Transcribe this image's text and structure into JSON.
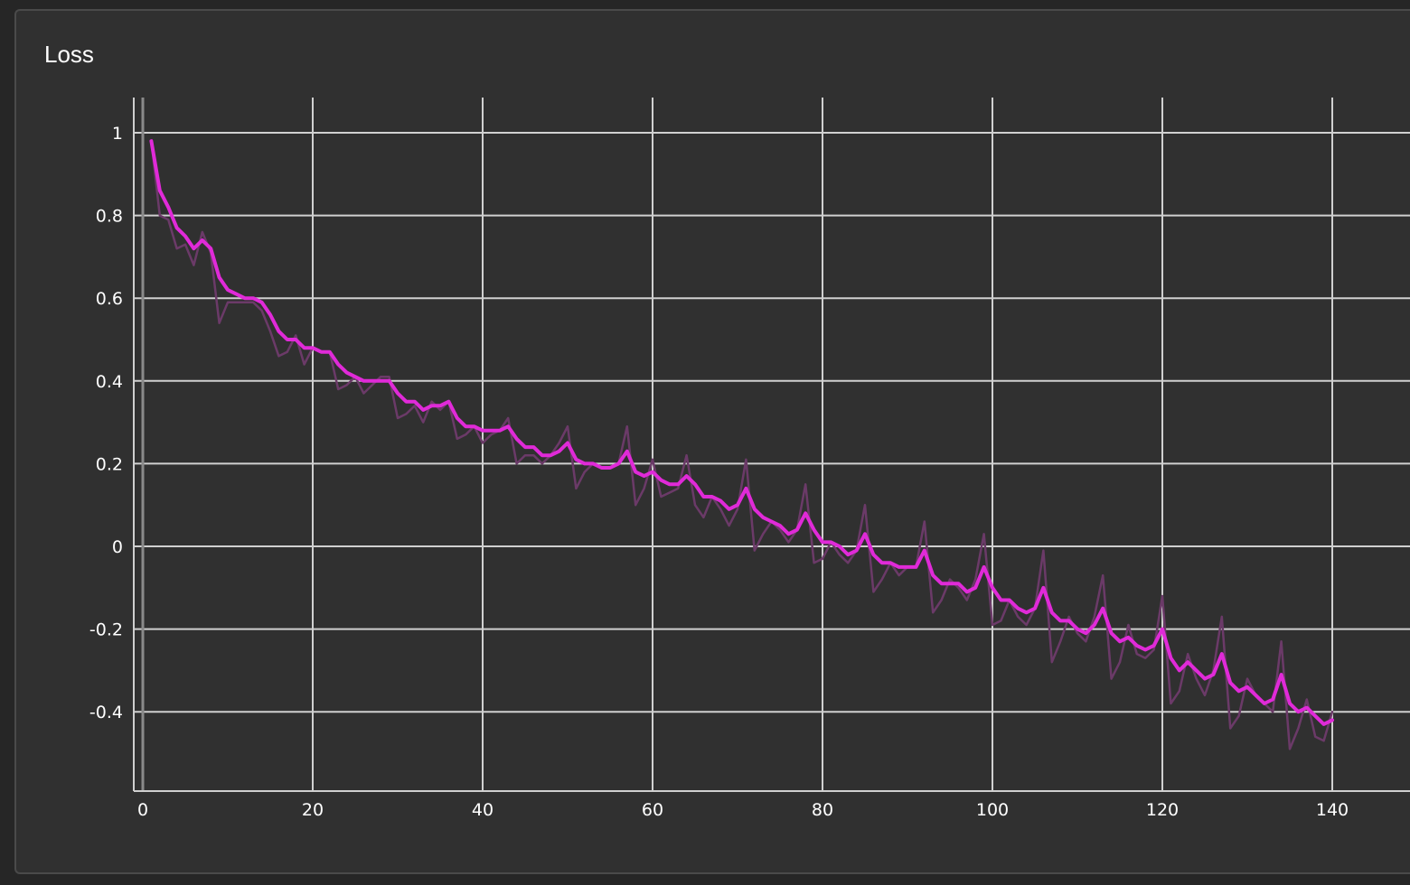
{
  "panel": {
    "title": "Loss"
  },
  "colors": {
    "background": "#262626",
    "panel": "#303030",
    "grid": "#d0d0d0",
    "smoothed_line": "#e02ad8",
    "raw_line": "#6b3a68",
    "text": "#ffffff"
  },
  "chart_data": {
    "type": "line",
    "title": "Loss",
    "xlabel": "",
    "ylabel": "",
    "xlim": [
      0,
      150
    ],
    "ylim": [
      -0.6,
      1.0
    ],
    "grid": true,
    "x_ticks": [
      {
        "value": 0,
        "label": "0",
        "dim": true
      },
      {
        "value": 20,
        "label": "20"
      },
      {
        "value": 40,
        "label": "40"
      },
      {
        "value": 60,
        "label": "60"
      },
      {
        "value": 80,
        "label": "80"
      },
      {
        "value": 100,
        "label": "100"
      },
      {
        "value": 120,
        "label": "120"
      },
      {
        "value": 140,
        "label": "140"
      }
    ],
    "y_ticks": [
      {
        "value": 1,
        "label": "1",
        "dim": true
      },
      {
        "value": 0.8,
        "label": "0.8"
      },
      {
        "value": 0.6,
        "label": "0.6"
      },
      {
        "value": 0.4,
        "label": "0.4"
      },
      {
        "value": 0.2,
        "label": "0.2"
      },
      {
        "value": 0,
        "label": "0"
      },
      {
        "value": -0.2,
        "label": "-0.2"
      },
      {
        "value": -0.4,
        "label": "-0.4"
      }
    ],
    "series": [
      {
        "role": "raw",
        "color": "#6b3a68",
        "x": [
          1,
          2,
          3,
          4,
          5,
          6,
          7,
          8,
          9,
          10,
          11,
          12,
          13,
          14,
          15,
          16,
          17,
          18,
          19,
          20,
          21,
          22,
          23,
          24,
          25,
          26,
          27,
          28,
          29,
          30,
          31,
          32,
          33,
          34,
          35,
          36,
          37,
          38,
          39,
          40,
          41,
          42,
          43,
          44,
          45,
          46,
          47,
          48,
          49,
          50,
          51,
          52,
          53,
          54,
          55,
          56,
          57,
          58,
          59,
          60,
          61,
          62,
          63,
          64,
          65,
          66,
          67,
          68,
          69,
          70,
          71,
          72,
          73,
          74,
          75,
          76,
          77,
          78,
          79,
          80,
          81,
          82,
          83,
          84,
          85,
          86,
          87,
          88,
          89,
          90,
          91,
          92,
          93,
          94,
          95,
          96,
          97,
          98,
          99,
          100,
          101,
          102,
          103,
          104,
          105,
          106,
          107,
          108,
          109,
          110,
          111,
          112,
          113,
          114,
          115,
          116,
          117,
          118,
          119,
          120,
          121,
          122,
          123,
          124,
          125,
          126,
          127,
          128,
          129,
          130,
          131,
          132,
          133,
          134,
          135,
          136,
          137,
          138,
          139,
          140
        ],
        "y": [
          0.98,
          0.8,
          0.79,
          0.72,
          0.73,
          0.68,
          0.76,
          0.71,
          0.54,
          0.59,
          0.59,
          0.59,
          0.59,
          0.57,
          0.52,
          0.46,
          0.47,
          0.51,
          0.44,
          0.48,
          0.47,
          0.47,
          0.38,
          0.39,
          0.41,
          0.37,
          0.39,
          0.41,
          0.41,
          0.31,
          0.32,
          0.34,
          0.3,
          0.35,
          0.33,
          0.35,
          0.26,
          0.27,
          0.29,
          0.25,
          0.27,
          0.28,
          0.31,
          0.2,
          0.22,
          0.22,
          0.2,
          0.22,
          0.25,
          0.29,
          0.14,
          0.18,
          0.2,
          0.19,
          0.19,
          0.2,
          0.29,
          0.1,
          0.14,
          0.21,
          0.12,
          0.13,
          0.14,
          0.22,
          0.1,
          0.07,
          0.12,
          0.09,
          0.05,
          0.09,
          0.21,
          -0.01,
          0.03,
          0.06,
          0.04,
          0.01,
          0.04,
          0.15,
          -0.04,
          -0.03,
          0.01,
          -0.02,
          -0.04,
          -0.01,
          0.1,
          -0.11,
          -0.08,
          -0.04,
          -0.07,
          -0.05,
          -0.05,
          0.06,
          -0.16,
          -0.13,
          -0.08,
          -0.1,
          -0.13,
          -0.08,
          0.03,
          -0.19,
          -0.18,
          -0.13,
          -0.17,
          -0.19,
          -0.15,
          -0.01,
          -0.28,
          -0.23,
          -0.17,
          -0.21,
          -0.23,
          -0.17,
          -0.07,
          -0.32,
          -0.28,
          -0.19,
          -0.26,
          -0.27,
          -0.25,
          -0.12,
          -0.38,
          -0.35,
          -0.26,
          -0.32,
          -0.36,
          -0.3,
          -0.17,
          -0.44,
          -0.41,
          -0.32,
          -0.36,
          -0.38,
          -0.4,
          -0.23,
          -0.49,
          -0.44,
          -0.37,
          -0.46,
          -0.47,
          -0.4
        ]
      },
      {
        "role": "smoothed",
        "color": "#e02ad8",
        "x": [
          1,
          2,
          3,
          4,
          5,
          6,
          7,
          8,
          9,
          10,
          11,
          12,
          13,
          14,
          15,
          16,
          17,
          18,
          19,
          20,
          21,
          22,
          23,
          24,
          25,
          26,
          27,
          28,
          29,
          30,
          31,
          32,
          33,
          34,
          35,
          36,
          37,
          38,
          39,
          40,
          41,
          42,
          43,
          44,
          45,
          46,
          47,
          48,
          49,
          50,
          51,
          52,
          53,
          54,
          55,
          56,
          57,
          58,
          59,
          60,
          61,
          62,
          63,
          64,
          65,
          66,
          67,
          68,
          69,
          70,
          71,
          72,
          73,
          74,
          75,
          76,
          77,
          78,
          79,
          80,
          81,
          82,
          83,
          84,
          85,
          86,
          87,
          88,
          89,
          90,
          91,
          92,
          93,
          94,
          95,
          96,
          97,
          98,
          99,
          100,
          101,
          102,
          103,
          104,
          105,
          106,
          107,
          108,
          109,
          110,
          111,
          112,
          113,
          114,
          115,
          116,
          117,
          118,
          119,
          120,
          121,
          122,
          123,
          124,
          125,
          126,
          127,
          128,
          129,
          130,
          131,
          132,
          133,
          134,
          135,
          136,
          137,
          138,
          139,
          140
        ],
        "y": [
          0.98,
          0.86,
          0.82,
          0.77,
          0.75,
          0.72,
          0.74,
          0.72,
          0.65,
          0.62,
          0.61,
          0.6,
          0.6,
          0.59,
          0.56,
          0.52,
          0.5,
          0.5,
          0.48,
          0.48,
          0.47,
          0.47,
          0.44,
          0.42,
          0.41,
          0.4,
          0.4,
          0.4,
          0.4,
          0.37,
          0.35,
          0.35,
          0.33,
          0.34,
          0.34,
          0.35,
          0.31,
          0.29,
          0.29,
          0.28,
          0.28,
          0.28,
          0.29,
          0.26,
          0.24,
          0.24,
          0.22,
          0.22,
          0.23,
          0.25,
          0.21,
          0.2,
          0.2,
          0.19,
          0.19,
          0.2,
          0.23,
          0.18,
          0.17,
          0.18,
          0.16,
          0.15,
          0.15,
          0.17,
          0.15,
          0.12,
          0.12,
          0.11,
          0.09,
          0.1,
          0.14,
          0.09,
          0.07,
          0.06,
          0.05,
          0.03,
          0.04,
          0.08,
          0.04,
          0.01,
          0.01,
          0.0,
          -0.02,
          -0.01,
          0.03,
          -0.02,
          -0.04,
          -0.04,
          -0.05,
          -0.05,
          -0.05,
          -0.01,
          -0.07,
          -0.09,
          -0.09,
          -0.09,
          -0.11,
          -0.1,
          -0.05,
          -0.1,
          -0.13,
          -0.13,
          -0.15,
          -0.16,
          -0.15,
          -0.1,
          -0.16,
          -0.18,
          -0.18,
          -0.2,
          -0.21,
          -0.19,
          -0.15,
          -0.21,
          -0.23,
          -0.22,
          -0.24,
          -0.25,
          -0.24,
          -0.2,
          -0.27,
          -0.3,
          -0.28,
          -0.3,
          -0.32,
          -0.31,
          -0.26,
          -0.33,
          -0.35,
          -0.34,
          -0.36,
          -0.38,
          -0.37,
          -0.31,
          -0.38,
          -0.4,
          -0.39,
          -0.41,
          -0.43,
          -0.42
        ]
      }
    ]
  }
}
